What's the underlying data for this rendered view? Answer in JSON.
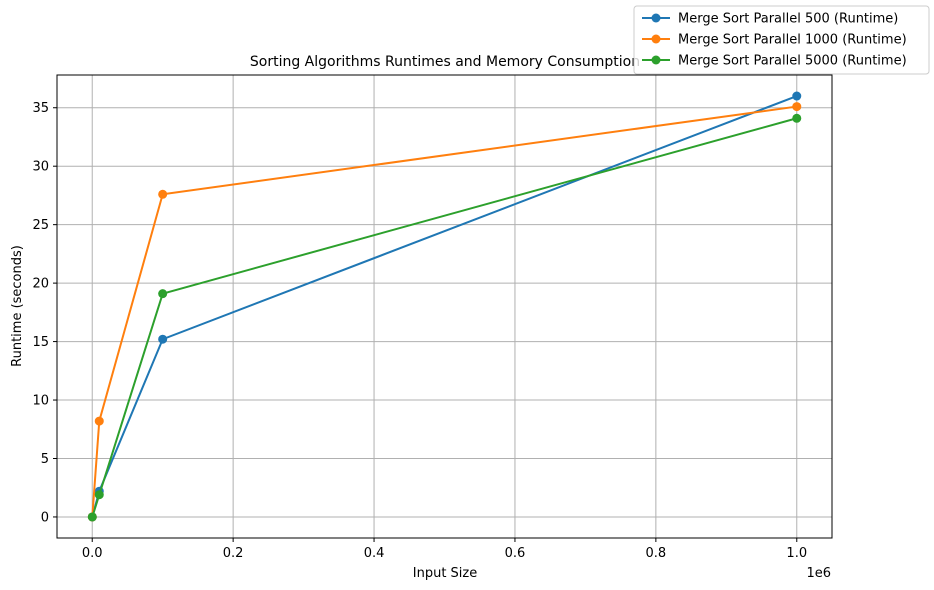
{
  "chart_data": {
    "type": "line",
    "title": "Sorting Algorithms Runtimes and Memory Consumption",
    "xlabel": "Input Size",
    "ylabel": "Runtime (seconds)",
    "x_offset_label": "1e6",
    "xlim": [
      -0.05,
      1.05
    ],
    "ylim": [
      -1.8,
      37.8
    ],
    "x_ticks": [
      0.0,
      0.2,
      0.4,
      0.6,
      0.8,
      1.0
    ],
    "x_tick_labels": [
      "0.0",
      "0.2",
      "0.4",
      "0.6",
      "0.8",
      "1.0"
    ],
    "y_ticks": [
      0,
      5,
      10,
      15,
      20,
      25,
      30,
      35
    ],
    "y_tick_labels": [
      "0",
      "5",
      "10",
      "15",
      "20",
      "25",
      "30",
      "35"
    ],
    "grid": true,
    "legend_position": "top-right",
    "x": [
      100,
      10000,
      100000,
      1000000
    ],
    "series": [
      {
        "name": "Merge Sort Parallel 500 (Runtime)",
        "color": "#1f77b4",
        "values": [
          0.0,
          2.2,
          15.2,
          36.0
        ]
      },
      {
        "name": "Merge Sort Parallel 1000 (Runtime)",
        "color": "#ff7f0e",
        "values": [
          0.0,
          8.2,
          27.6,
          35.1
        ]
      },
      {
        "name": "Merge Sort Parallel 5000 (Runtime)",
        "color": "#2ca02c",
        "values": [
          0.0,
          1.9,
          19.1,
          34.1
        ]
      }
    ]
  }
}
